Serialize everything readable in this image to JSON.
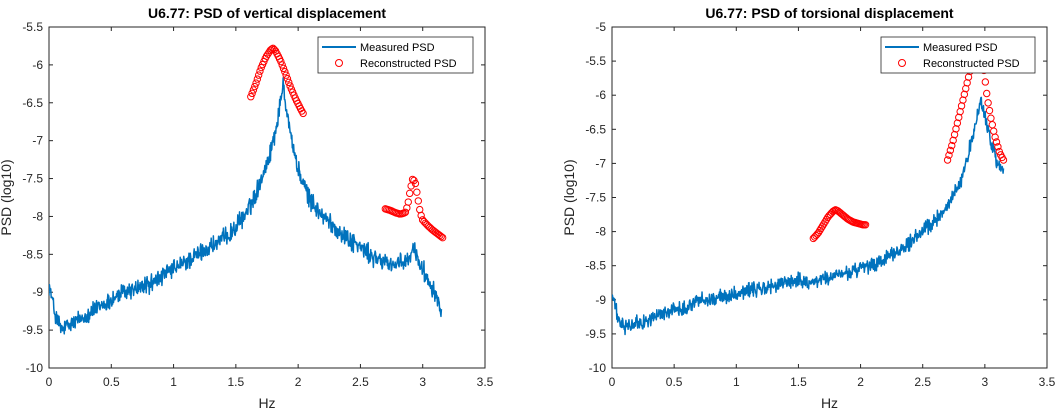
{
  "chart_data": [
    {
      "type": "line",
      "title": "U6.77: PSD of vertical displacement",
      "xlabel": "Hz",
      "ylabel": "PSD (log10)",
      "xlim": [
        0,
        3.5
      ],
      "ylim": [
        -10,
        -5.5
      ],
      "xticks": [
        "0",
        "0.5",
        "1",
        "1.5",
        "2",
        "2.5",
        "3",
        "3.5"
      ],
      "yticks": [
        "-10",
        "-9.5",
        "-9",
        "-8.5",
        "-8",
        "-7.5",
        "-7",
        "-6.5",
        "-6",
        "-5.5"
      ],
      "legend": {
        "position": "top-right",
        "entries": [
          "Measured PSD",
          "Reconstructed PSD"
        ]
      },
      "grid": false,
      "series": [
        {
          "name": "Measured PSD",
          "style": "line",
          "color": "#0072BD",
          "x": [
            0,
            0.05,
            0.1,
            0.2,
            0.3,
            0.4,
            0.5,
            0.6,
            0.7,
            0.8,
            0.9,
            1.0,
            1.1,
            1.2,
            1.3,
            1.4,
            1.5,
            1.6,
            1.65,
            1.7,
            1.75,
            1.8,
            1.85,
            1.88,
            1.9,
            1.95,
            2.0,
            2.1,
            2.2,
            2.3,
            2.4,
            2.5,
            2.6,
            2.7,
            2.8,
            2.85,
            2.9,
            2.93,
            2.96,
            3.0,
            3.05,
            3.1,
            3.15
          ],
          "y": [
            -8.9,
            -9.3,
            -9.5,
            -9.4,
            -9.3,
            -9.2,
            -9.1,
            -9.0,
            -8.95,
            -8.9,
            -8.8,
            -8.7,
            -8.6,
            -8.5,
            -8.4,
            -8.3,
            -8.15,
            -7.9,
            -7.75,
            -7.5,
            -7.3,
            -7.0,
            -6.6,
            -6.2,
            -6.5,
            -7.0,
            -7.4,
            -7.8,
            -8.0,
            -8.15,
            -8.3,
            -8.4,
            -8.55,
            -8.6,
            -8.65,
            -8.6,
            -8.55,
            -8.4,
            -8.55,
            -8.7,
            -8.85,
            -9.0,
            -9.25
          ],
          "noise": 0.15
        },
        {
          "name": "Reconstructed PSD",
          "style": "circle",
          "color": "#FF0000",
          "x": [
            1.62,
            1.66,
            1.7,
            1.74,
            1.78,
            1.8,
            1.82,
            1.86,
            1.9,
            1.94,
            1.98,
            2.02,
            2.04
          ],
          "y": [
            -6.42,
            -6.25,
            -6.05,
            -5.9,
            -5.8,
            -5.78,
            -5.82,
            -5.95,
            -6.12,
            -6.3,
            -6.45,
            -6.58,
            -6.64
          ]
        },
        {
          "name": "Reconstructed PSD",
          "style": "circle",
          "color": "#FF0000",
          "x": [
            2.7,
            2.74,
            2.78,
            2.82,
            2.86,
            2.88,
            2.9,
            2.92,
            2.94,
            2.96,
            2.98,
            3.0,
            3.04,
            3.08,
            3.12,
            3.16
          ],
          "y": [
            -7.9,
            -7.92,
            -7.95,
            -7.97,
            -7.95,
            -7.85,
            -7.65,
            -7.5,
            -7.55,
            -7.75,
            -7.95,
            -8.05,
            -8.12,
            -8.18,
            -8.23,
            -8.28
          ]
        }
      ]
    },
    {
      "type": "line",
      "title": "U6.77: PSD of torsional displacement",
      "xlabel": "Hz",
      "ylabel": "PSD (log10)",
      "xlim": [
        0,
        3.5
      ],
      "ylim": [
        -10,
        -5
      ],
      "xticks": [
        "0",
        "0.5",
        "1",
        "1.5",
        "2",
        "2.5",
        "3",
        "3.5"
      ],
      "yticks": [
        "-10",
        "-9.5",
        "-9",
        "-8.5",
        "-8",
        "-7.5",
        "-7",
        "-6.5",
        "-6",
        "-5.5",
        "-5"
      ],
      "legend": {
        "position": "top-right",
        "entries": [
          "Measured PSD",
          "Reconstructed PSD"
        ]
      },
      "grid": false,
      "series": [
        {
          "name": "Measured PSD",
          "style": "line",
          "color": "#0072BD",
          "x": [
            0,
            0.05,
            0.1,
            0.2,
            0.3,
            0.4,
            0.5,
            0.6,
            0.7,
            0.8,
            0.9,
            1.0,
            1.1,
            1.2,
            1.3,
            1.4,
            1.5,
            1.6,
            1.7,
            1.8,
            1.9,
            2.0,
            2.1,
            2.2,
            2.3,
            2.4,
            2.5,
            2.6,
            2.7,
            2.8,
            2.85,
            2.9,
            2.95,
            2.97,
            3.0,
            3.05,
            3.1,
            3.15
          ],
          "y": [
            -8.9,
            -9.3,
            -9.4,
            -9.35,
            -9.3,
            -9.2,
            -9.15,
            -9.1,
            -9.0,
            -9.0,
            -8.95,
            -8.9,
            -8.85,
            -8.85,
            -8.8,
            -8.75,
            -8.7,
            -8.75,
            -8.7,
            -8.65,
            -8.6,
            -8.55,
            -8.5,
            -8.4,
            -8.3,
            -8.15,
            -8.0,
            -7.85,
            -7.6,
            -7.3,
            -7.0,
            -6.6,
            -6.25,
            -6.05,
            -6.3,
            -6.7,
            -7.0,
            -7.1
          ],
          "noise": 0.13
        },
        {
          "name": "Reconstructed PSD",
          "style": "circle",
          "color": "#FF0000",
          "x": [
            1.62,
            1.66,
            1.7,
            1.74,
            1.78,
            1.8,
            1.82,
            1.86,
            1.9,
            1.94,
            1.98,
            2.02,
            2.04
          ],
          "y": [
            -8.1,
            -8.02,
            -7.9,
            -7.78,
            -7.7,
            -7.68,
            -7.7,
            -7.76,
            -7.82,
            -7.86,
            -7.88,
            -7.9,
            -7.9
          ]
        },
        {
          "name": "Reconstructed PSD",
          "style": "circle",
          "color": "#FF0000",
          "x": [
            2.7,
            2.74,
            2.78,
            2.82,
            2.86,
            2.9,
            2.93,
            2.96,
            2.98,
            3.0,
            3.02,
            3.05,
            3.08,
            3.12,
            3.15
          ],
          "y": [
            -6.95,
            -6.7,
            -6.4,
            -6.1,
            -5.8,
            -5.5,
            -5.3,
            -5.3,
            -5.45,
            -5.75,
            -6.05,
            -6.35,
            -6.6,
            -6.85,
            -6.95
          ]
        }
      ]
    }
  ]
}
